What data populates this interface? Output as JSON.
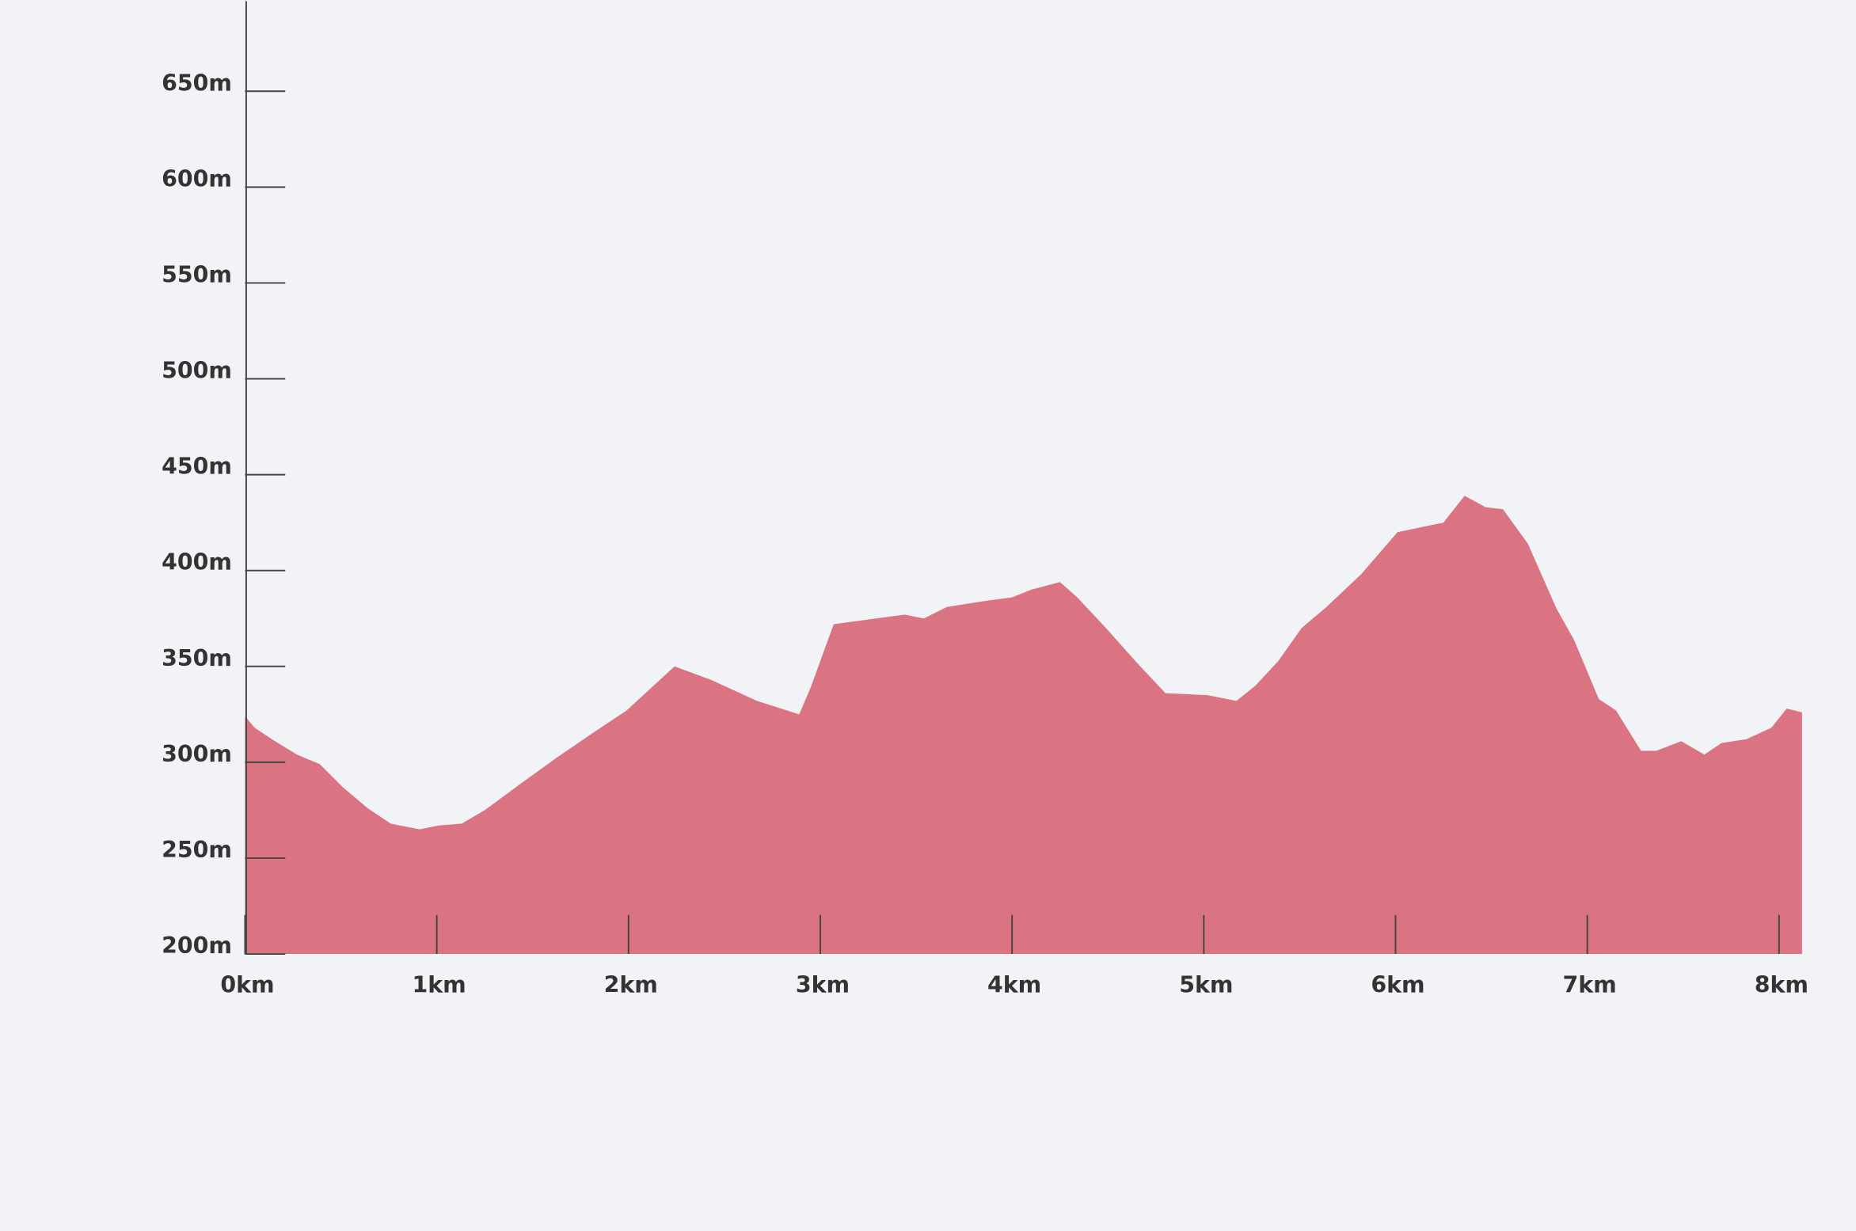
{
  "chart_data": {
    "type": "area",
    "x": [
      0,
      0.05,
      0.14,
      0.27,
      0.39,
      0.51,
      0.64,
      0.76,
      0.91,
      1.01,
      1.13,
      1.25,
      1.44,
      1.62,
      1.81,
      1.99,
      2.24,
      2.43,
      2.67,
      2.89,
      2.95,
      3.07,
      3.29,
      3.44,
      3.54,
      3.66,
      3.85,
      4.0,
      4.1,
      4.25,
      4.34,
      4.49,
      4.65,
      4.8,
      5.02,
      5.17,
      5.27,
      5.39,
      5.51,
      5.64,
      5.82,
      6.01,
      6.25,
      6.36,
      6.47,
      6.56,
      6.69,
      6.84,
      6.93,
      7.06,
      7.15,
      7.28,
      7.36,
      7.49,
      7.61,
      7.7,
      7.83,
      7.96,
      8.04,
      8.12
    ],
    "values": [
      324,
      318,
      312,
      304,
      299,
      287,
      276,
      268,
      265,
      267,
      268,
      275,
      289,
      302,
      315,
      327,
      350,
      343,
      332,
      325,
      339,
      372,
      375,
      377,
      375,
      381,
      384,
      386,
      390,
      394,
      386,
      370,
      352,
      336,
      335,
      332,
      340,
      353,
      370,
      381,
      398,
      420,
      425,
      439,
      433,
      432,
      414,
      380,
      364,
      333,
      327,
      306,
      306,
      311,
      304,
      310,
      312,
      318,
      328,
      326
    ],
    "color": "#da7482",
    "xlim": [
      0,
      8.13
    ],
    "ylim": [
      200,
      697
    ],
    "xticks": [
      {
        "value": 0,
        "label": "0km"
      },
      {
        "value": 1,
        "label": "1km"
      },
      {
        "value": 2,
        "label": "2km"
      },
      {
        "value": 3,
        "label": "3km"
      },
      {
        "value": 4,
        "label": "4km"
      },
      {
        "value": 5,
        "label": "5km"
      },
      {
        "value": 6,
        "label": "6km"
      },
      {
        "value": 7,
        "label": "7km"
      },
      {
        "value": 8,
        "label": "8km"
      }
    ],
    "yticks": [
      {
        "value": 200,
        "label": "200m"
      },
      {
        "value": 250,
        "label": "250m"
      },
      {
        "value": 300,
        "label": "300m"
      },
      {
        "value": 350,
        "label": "350m"
      },
      {
        "value": 400,
        "label": "400m"
      },
      {
        "value": 450,
        "label": "450m"
      },
      {
        "value": 500,
        "label": "500m"
      },
      {
        "value": 550,
        "label": "550m"
      },
      {
        "value": 600,
        "label": "600m"
      },
      {
        "value": 650,
        "label": "650m"
      }
    ]
  }
}
